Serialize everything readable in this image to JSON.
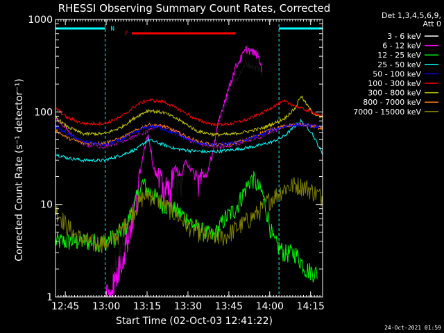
{
  "chart_data": {
    "type": "line",
    "title": "RHESSI Observing Summary Count Rates, Corrected",
    "xlabel": "Start Time (02-Oct-03 12:41:22)",
    "ylabel": "Corrected Count Rate (s⁻¹ detector⁻¹)",
    "y_scale": "log",
    "xlim_min": [
      0,
      98
    ],
    "ylim": [
      1,
      1000
    ],
    "x_ticks": [
      {
        "min": 3.6,
        "label": "12:45"
      },
      {
        "min": 18.6,
        "label": "13:00"
      },
      {
        "min": 33.6,
        "label": "13:15"
      },
      {
        "min": 48.6,
        "label": "13:30"
      },
      {
        "min": 63.6,
        "label": "13:45"
      },
      {
        "min": 78.6,
        "label": "14:00"
      },
      {
        "min": 93.6,
        "label": "14:15"
      }
    ],
    "y_ticks": [
      {
        "value": 1,
        "label": "1"
      },
      {
        "value": 10,
        "label": "10"
      },
      {
        "value": 100,
        "label": "100"
      },
      {
        "value": 1000,
        "label": "1000"
      }
    ],
    "legend_header": [
      "Det 1,3,4,5,6,9,",
      "Att 0"
    ],
    "legend_placement": "right",
    "annotations": {
      "night_label": "N",
      "flare_label": "F",
      "timestamp": "24-Oct-2021 01:59"
    },
    "night_intervals_min": [
      [
        0,
        18.2
      ],
      [
        82,
        98
      ]
    ],
    "flare_interval_min": [
      28,
      66
    ],
    "series": [
      {
        "name": "3 - 6 keV",
        "color": "#000000",
        "points": [
          [
            0,
            92
          ],
          [
            4,
            65
          ],
          [
            10,
            44
          ],
          [
            18,
            42
          ],
          [
            26,
            50
          ],
          [
            33,
            60
          ],
          [
            38,
            72
          ],
          [
            44,
            62
          ],
          [
            50,
            48
          ],
          [
            56,
            42
          ],
          [
            62,
            42
          ],
          [
            68,
            46
          ],
          [
            74,
            52
          ],
          [
            80,
            62
          ],
          [
            84,
            70
          ],
          [
            90,
            74
          ],
          [
            96,
            70
          ]
        ]
      },
      {
        "name": "6 - 12 keV",
        "color": "#ff00ff",
        "points": [
          [
            0,
            86
          ],
          [
            4,
            65
          ],
          [
            10,
            44
          ],
          [
            18,
            42
          ],
          [
            26,
            50
          ],
          [
            33,
            60
          ],
          [
            38,
            72
          ],
          [
            44,
            62
          ],
          [
            50,
            48
          ],
          [
            56,
            42
          ],
          [
            62,
            42
          ],
          [
            68,
            46
          ],
          [
            74,
            52
          ],
          [
            80,
            62
          ],
          [
            84,
            70
          ],
          [
            90,
            74
          ],
          [
            96,
            70
          ]
        ]
      },
      {
        "name": "12 - 25 keV",
        "color": "#00ff00",
        "points": [
          [
            0,
            4
          ],
          [
            18,
            4
          ],
          [
            22,
            4.5
          ],
          [
            26,
            6
          ],
          [
            32,
            17
          ],
          [
            34,
            14
          ],
          [
            40,
            10
          ],
          [
            46,
            8
          ],
          [
            52,
            5.5
          ],
          [
            58,
            4.5
          ],
          [
            62,
            7
          ],
          [
            66,
            9
          ],
          [
            72,
            20
          ],
          [
            76,
            13
          ],
          [
            80,
            4
          ],
          [
            84,
            3
          ],
          [
            88,
            3
          ],
          [
            92,
            2
          ],
          [
            96,
            1.8
          ]
        ]
      },
      {
        "name": "25 - 50 keV",
        "color": "#00ffff",
        "points": [
          [
            0,
            35
          ],
          [
            4,
            32
          ],
          [
            10,
            30
          ],
          [
            18,
            30
          ],
          [
            24,
            34
          ],
          [
            30,
            40
          ],
          [
            34,
            50
          ],
          [
            38,
            46
          ],
          [
            44,
            40
          ],
          [
            50,
            38
          ],
          [
            56,
            37
          ],
          [
            62,
            38
          ],
          [
            68,
            40
          ],
          [
            74,
            43
          ],
          [
            80,
            48
          ],
          [
            84,
            55
          ],
          [
            90,
            80
          ],
          [
            94,
            60
          ],
          [
            98,
            35
          ]
        ]
      },
      {
        "name": "50 - 100 keV",
        "color": "#0000ff",
        "points": [
          [
            0,
            70
          ],
          [
            4,
            58
          ],
          [
            10,
            48
          ],
          [
            18,
            44
          ],
          [
            24,
            50
          ],
          [
            30,
            62
          ],
          [
            34,
            70
          ],
          [
            38,
            68
          ],
          [
            44,
            58
          ],
          [
            50,
            48
          ],
          [
            56,
            44
          ],
          [
            62,
            45
          ],
          [
            68,
            48
          ],
          [
            74,
            55
          ],
          [
            80,
            65
          ],
          [
            86,
            72
          ],
          [
            92,
            72
          ],
          [
            98,
            68
          ]
        ]
      },
      {
        "name": "100 - 300 keV",
        "color": "#ff0000",
        "points": [
          [
            0,
            110
          ],
          [
            4,
            88
          ],
          [
            10,
            75
          ],
          [
            18,
            75
          ],
          [
            24,
            88
          ],
          [
            30,
            120
          ],
          [
            34,
            135
          ],
          [
            40,
            128
          ],
          [
            46,
            104
          ],
          [
            52,
            82
          ],
          [
            58,
            73
          ],
          [
            64,
            74
          ],
          [
            70,
            82
          ],
          [
            76,
            98
          ],
          [
            80,
            115
          ],
          [
            84,
            130
          ],
          [
            90,
            110
          ],
          [
            94,
            100
          ],
          [
            98,
            90
          ]
        ]
      },
      {
        "name": "300 - 800 keV",
        "color": "#cccc00",
        "points": [
          [
            0,
            88
          ],
          [
            4,
            70
          ],
          [
            10,
            58
          ],
          [
            18,
            58
          ],
          [
            24,
            68
          ],
          [
            30,
            90
          ],
          [
            34,
            104
          ],
          [
            40,
            98
          ],
          [
            46,
            80
          ],
          [
            52,
            62
          ],
          [
            58,
            57
          ],
          [
            64,
            57
          ],
          [
            70,
            61
          ],
          [
            76,
            67
          ],
          [
            80,
            75
          ],
          [
            84,
            85
          ],
          [
            88,
            110
          ],
          [
            90,
            150
          ],
          [
            94,
            100
          ],
          [
            98,
            85
          ]
        ]
      },
      {
        "name": "800 - 7000 keV",
        "color": "#ff8000",
        "points": [
          [
            0,
            64
          ],
          [
            4,
            53
          ],
          [
            10,
            46
          ],
          [
            18,
            46
          ],
          [
            24,
            52
          ],
          [
            30,
            64
          ],
          [
            34,
            73
          ],
          [
            40,
            70
          ],
          [
            46,
            58
          ],
          [
            52,
            48
          ],
          [
            58,
            44
          ],
          [
            64,
            45
          ],
          [
            70,
            50
          ],
          [
            76,
            60
          ],
          [
            80,
            66
          ],
          [
            86,
            72
          ],
          [
            92,
            72
          ],
          [
            98,
            66
          ]
        ]
      },
      {
        "name": "7000 - 15000 keV",
        "color": "#808000",
        "points": [
          [
            0,
            9
          ],
          [
            4,
            6
          ],
          [
            8,
            4.5
          ],
          [
            14,
            3.8
          ],
          [
            20,
            4
          ],
          [
            24,
            5
          ],
          [
            28,
            8
          ],
          [
            32,
            12
          ],
          [
            34,
            13
          ],
          [
            38,
            11
          ],
          [
            44,
            8
          ],
          [
            50,
            5.5
          ],
          [
            56,
            4.5
          ],
          [
            62,
            4.5
          ],
          [
            68,
            6
          ],
          [
            74,
            8
          ],
          [
            78,
            11
          ],
          [
            84,
            15
          ],
          [
            88,
            16.5
          ],
          [
            92,
            15.5
          ],
          [
            96,
            13
          ],
          [
            98,
            12
          ]
        ]
      }
    ],
    "burst_series": [
      {
        "name": "3 - 6 keV",
        "color": "#000000",
        "points": [
          [
            20,
            1.5
          ],
          [
            24,
            3
          ],
          [
            28,
            6
          ],
          [
            30,
            12
          ],
          [
            32,
            30
          ],
          [
            34,
            65
          ],
          [
            36,
            30
          ],
          [
            38,
            18
          ],
          [
            40,
            15
          ],
          [
            42,
            14
          ],
          [
            44,
            22
          ],
          [
            46,
            16
          ],
          [
            48,
            30
          ],
          [
            50,
            25
          ],
          [
            52,
            22
          ],
          [
            54,
            20
          ],
          [
            56,
            25
          ],
          [
            58,
            40
          ],
          [
            60,
            60
          ],
          [
            62,
            110
          ],
          [
            66,
            220
          ],
          [
            70,
            330
          ],
          [
            74,
            300
          ],
          [
            76,
            260
          ]
        ]
      },
      {
        "name": "6 - 12 keV",
        "color": "#ff00ff",
        "points": [
          [
            18,
            1
          ],
          [
            22,
            1.5
          ],
          [
            26,
            4
          ],
          [
            30,
            12
          ],
          [
            32,
            35
          ],
          [
            34,
            60
          ],
          [
            36,
            25
          ],
          [
            38,
            18
          ],
          [
            40,
            14
          ],
          [
            42,
            15
          ],
          [
            44,
            25
          ],
          [
            46,
            20
          ],
          [
            48,
            30
          ],
          [
            52,
            18
          ],
          [
            56,
            22
          ],
          [
            60,
            80
          ],
          [
            62,
            130
          ],
          [
            66,
            300
          ],
          [
            70,
            480
          ],
          [
            74,
            420
          ],
          [
            76,
            280
          ]
        ]
      }
    ]
  }
}
